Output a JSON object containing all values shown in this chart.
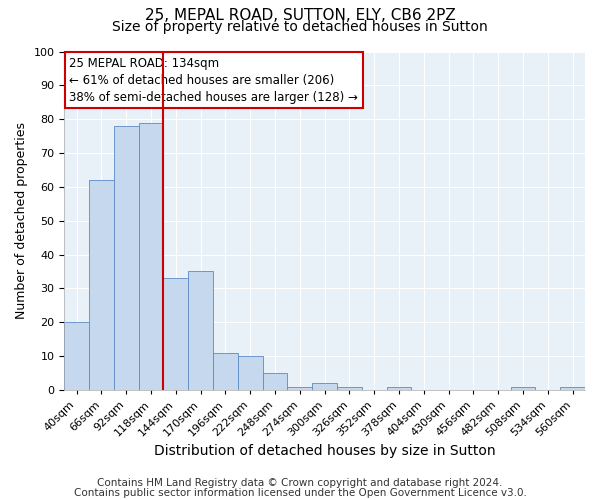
{
  "title": "25, MEPAL ROAD, SUTTON, ELY, CB6 2PZ",
  "subtitle": "Size of property relative to detached houses in Sutton",
  "xlabel": "Distribution of detached houses by size in Sutton",
  "ylabel": "Number of detached properties",
  "bin_labels": [
    "40sqm",
    "66sqm",
    "92sqm",
    "118sqm",
    "144sqm",
    "170sqm",
    "196sqm",
    "222sqm",
    "248sqm",
    "274sqm",
    "300sqm",
    "326sqm",
    "352sqm",
    "378sqm",
    "404sqm",
    "430sqm",
    "456sqm",
    "482sqm",
    "508sqm",
    "534sqm",
    "560sqm"
  ],
  "bar_values": [
    20,
    62,
    78,
    79,
    33,
    35,
    11,
    10,
    5,
    1,
    2,
    1,
    0,
    1,
    0,
    0,
    0,
    0,
    1,
    0,
    1
  ],
  "bar_color": "#c5d8ed",
  "bar_edge_color": "#5b8bc5",
  "vline_position": 4.0,
  "vline_color": "#cc0000",
  "annotation_title": "25 MEPAL ROAD: 134sqm",
  "annotation_line1": "← 61% of detached houses are smaller (206)",
  "annotation_line2": "38% of semi-detached houses are larger (128) →",
  "annotation_box_facecolor": "#ffffff",
  "annotation_box_edgecolor": "#cc0000",
  "ylim": [
    0,
    100
  ],
  "yticks": [
    0,
    10,
    20,
    30,
    40,
    50,
    60,
    70,
    80,
    90,
    100
  ],
  "footnote1": "Contains HM Land Registry data © Crown copyright and database right 2024.",
  "footnote2": "Contains public sector information licensed under the Open Government Licence v3.0.",
  "ax_background_color": "#e8f0f8",
  "fig_background_color": "#ffffff",
  "title_fontsize": 11,
  "subtitle_fontsize": 10,
  "xlabel_fontsize": 10,
  "ylabel_fontsize": 9,
  "tick_fontsize": 8,
  "annotation_fontsize": 8.5,
  "footnote_fontsize": 7.5
}
